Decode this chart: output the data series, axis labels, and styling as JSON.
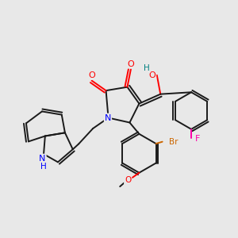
{
  "background_color": "#e8e8e8",
  "fig_width": 3.0,
  "fig_height": 3.0,
  "dpi": 100,
  "atom_colors": {
    "O": "#ff0000",
    "N": "#0000ff",
    "H_indole": "#0000ff",
    "H_OH": "#008080",
    "Br": "#cc6600",
    "F": "#ff00aa",
    "C": "#1a1a1a"
  },
  "lw": 1.4
}
